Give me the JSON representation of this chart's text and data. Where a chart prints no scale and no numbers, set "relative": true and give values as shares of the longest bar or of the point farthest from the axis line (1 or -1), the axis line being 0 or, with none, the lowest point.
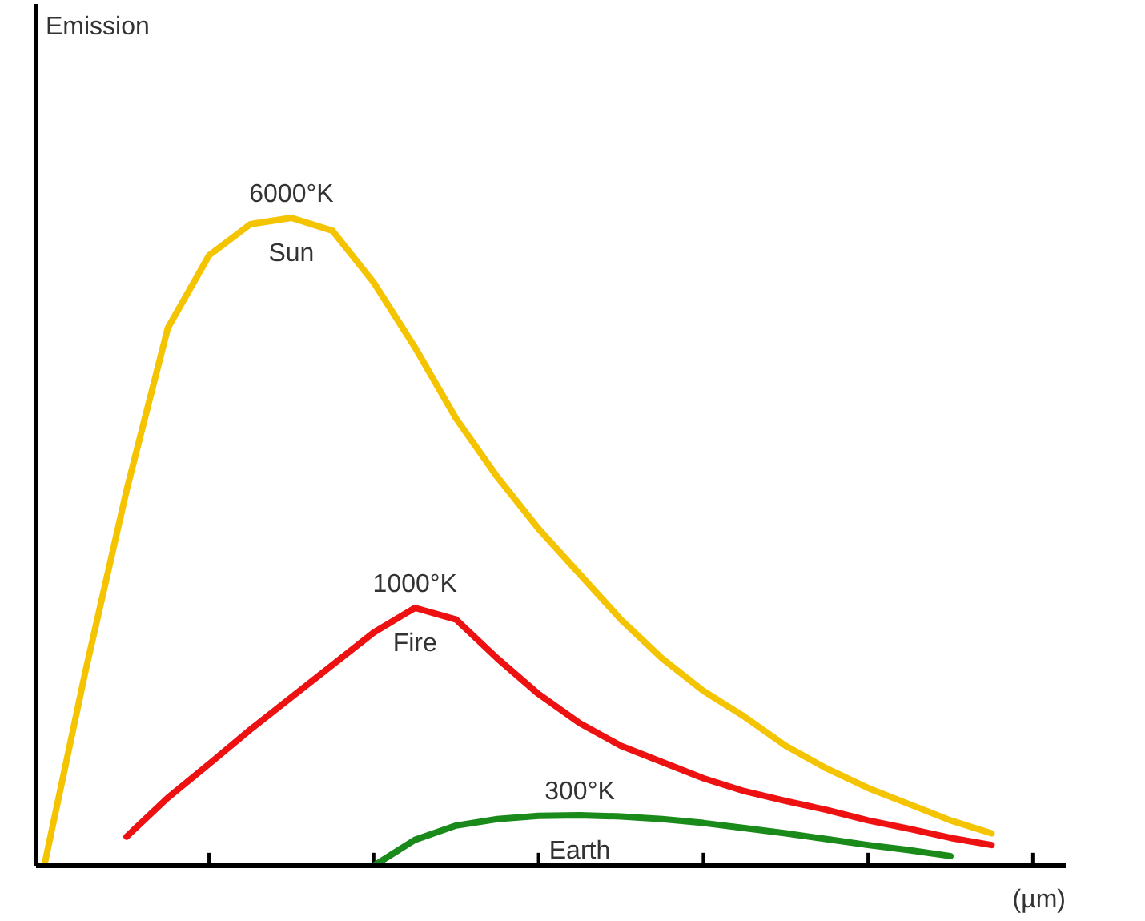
{
  "chart_data": {
    "type": "line",
    "relative": true,
    "xlabel": "(µm)",
    "grid": false,
    "legend": false,
    "marker": "none",
    "line_style": "solid",
    "categories": [
      null,
      null,
      null,
      null,
      null,
      null,
      null,
      null,
      null,
      null,
      null,
      null,
      null,
      null,
      null,
      null,
      null,
      null,
      null,
      null,
      null,
      null,
      null,
      null,
      null
    ],
    "series": [
      {
        "name": "Sun",
        "color": "#f5c400",
        "values": [
          0,
          0.3,
          0.58,
          0.83,
          0.942,
          0.99,
          1.0,
          0.98,
          0.9,
          0.8,
          0.69,
          0.6,
          0.52,
          0.45,
          0.38,
          0.32,
          0.27,
          0.23,
          0.185,
          0.15,
          0.12,
          0.095,
          0.07,
          0.05,
          null
        ]
      },
      {
        "name": "Fire",
        "color": "#ee1111",
        "values": [
          null,
          null,
          0.045,
          0.105,
          0.157,
          0.21,
          0.26,
          0.31,
          0.36,
          0.398,
          0.38,
          0.32,
          0.265,
          0.22,
          0.185,
          0.16,
          0.135,
          0.115,
          0.1,
          0.086,
          0.07,
          0.057,
          0.043,
          0.032,
          null
        ]
      },
      {
        "name": "Earth",
        "color": "#1a8a1a",
        "values": [
          null,
          null,
          null,
          null,
          null,
          null,
          null,
          null,
          0,
          0.04,
          0.062,
          0.072,
          0.077,
          0.078,
          0.076,
          0.072,
          0.066,
          0.058,
          0.05,
          0.041,
          0.032,
          0.024,
          0.015,
          null,
          null
        ]
      }
    ],
    "annotations": [
      "6000°K",
      "1000°K",
      "300°K",
      "Emission"
    ]
  }
}
